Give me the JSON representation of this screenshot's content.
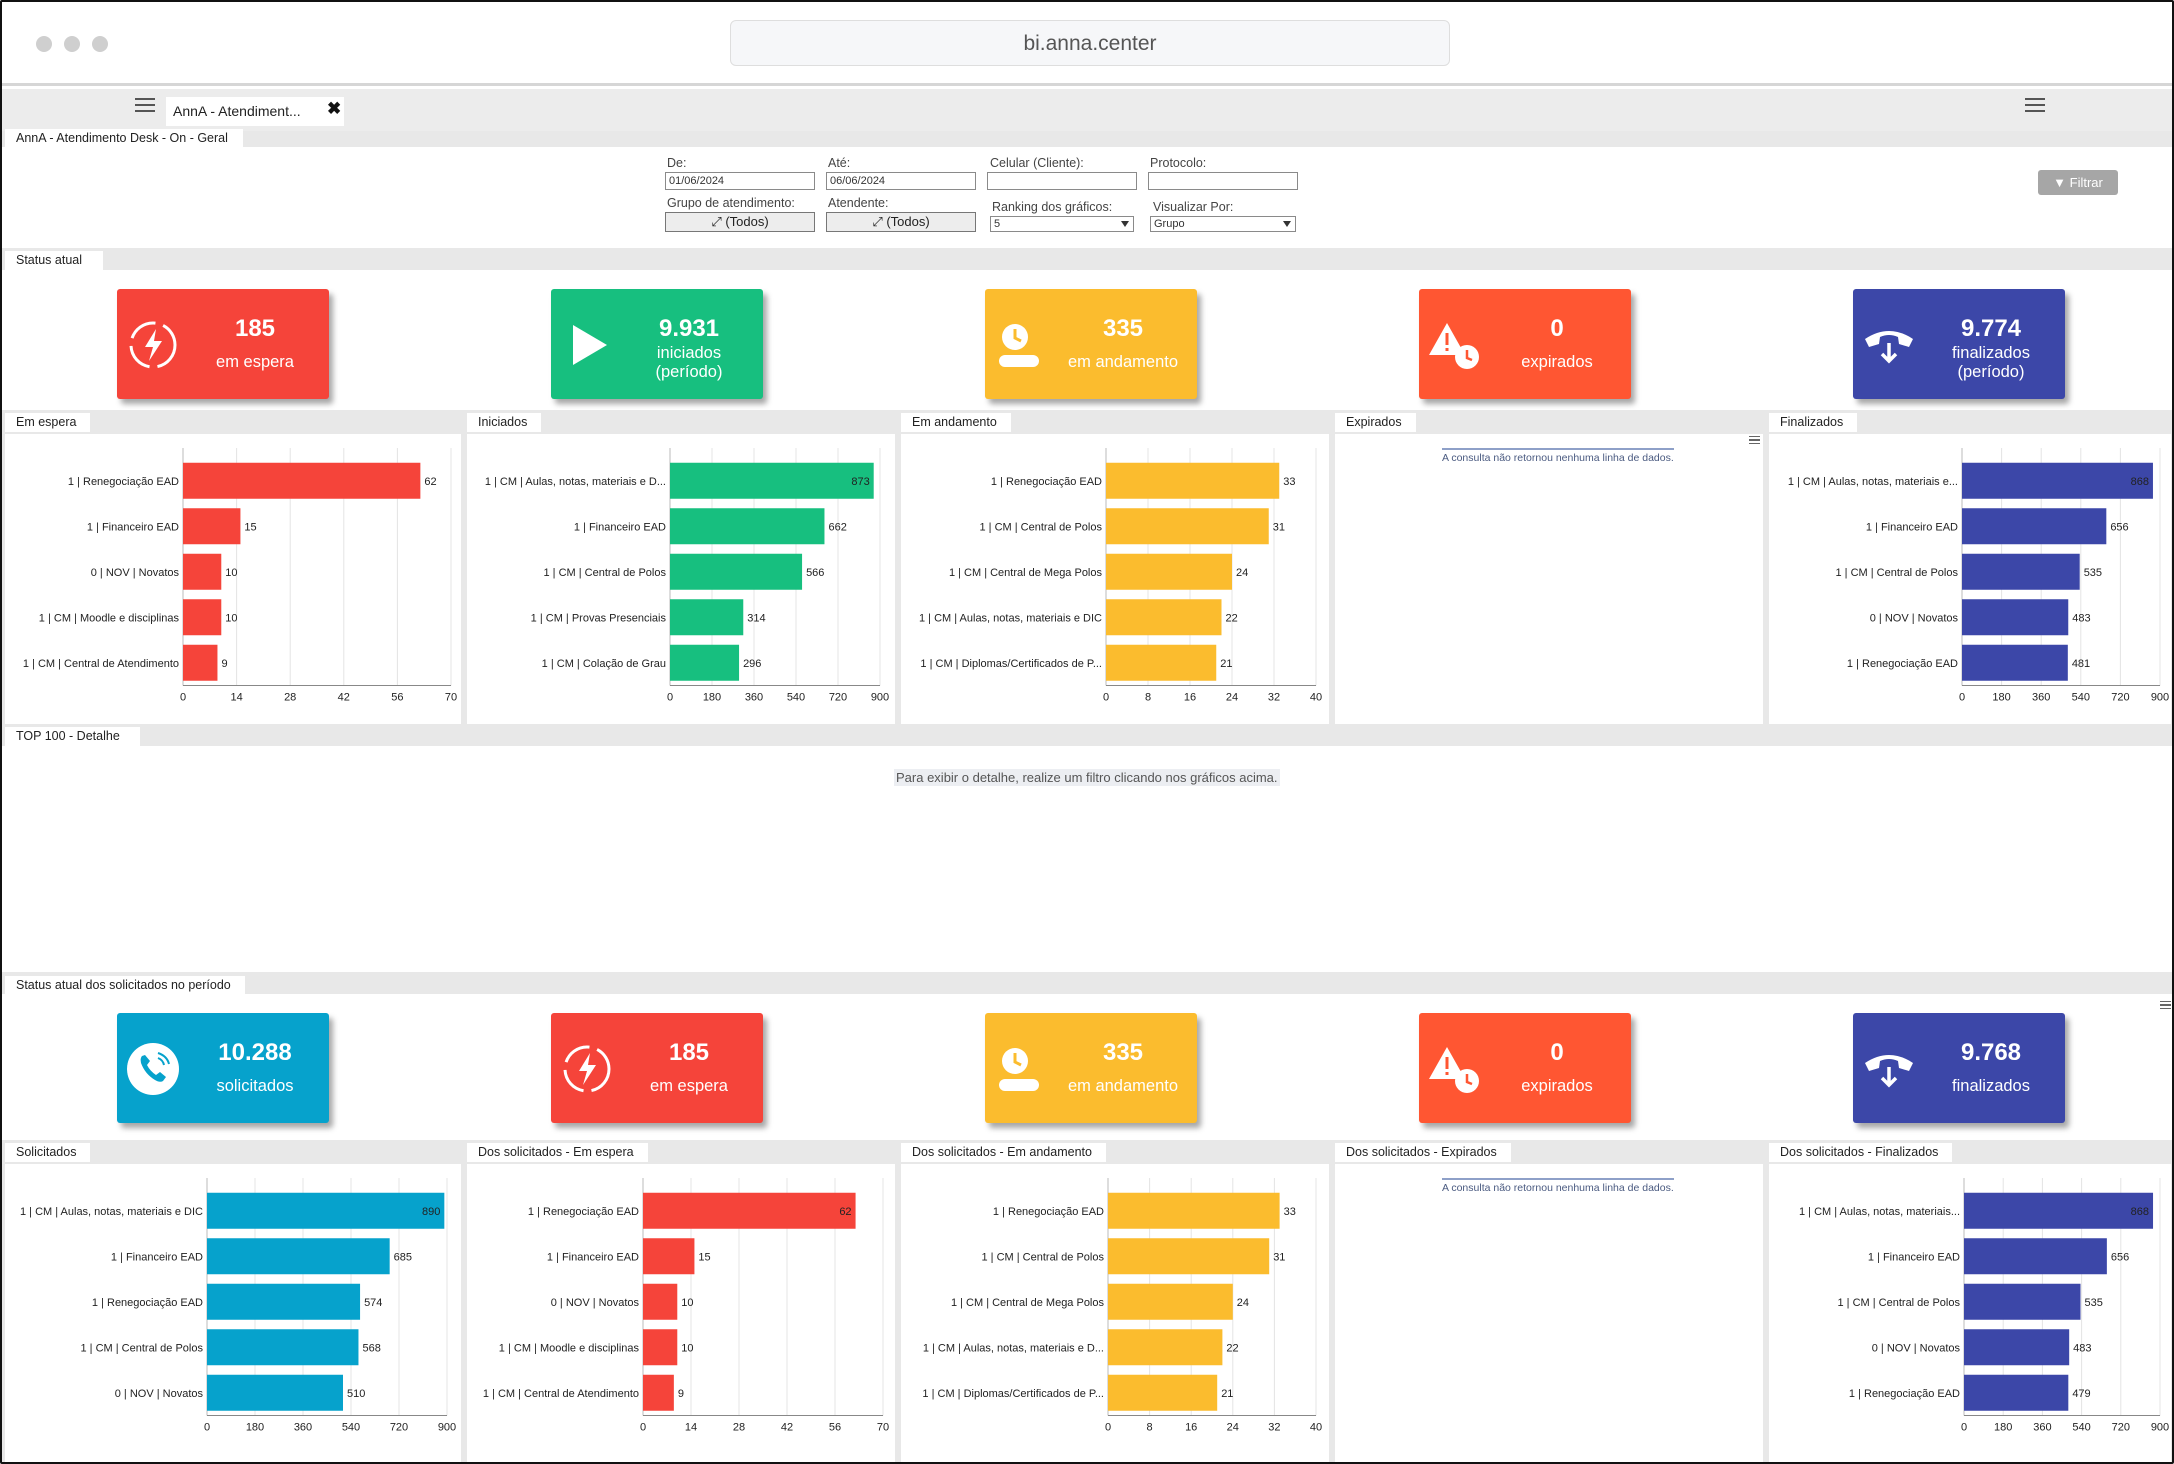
{
  "browser": {
    "url": "bi.anna.center"
  },
  "tab": {
    "title": "AnnA - Atendiment...",
    "close": "✖"
  },
  "dashboard": {
    "title": "AnnA - Atendimento Desk - On - Geral"
  },
  "filters": {
    "from_label": "De:",
    "from_value": "01/06/2024",
    "to_label": "Até:",
    "to_value": "06/06/2024",
    "phone_label": "Celular (Cliente):",
    "phone_value": "",
    "protocol_label": "Protocolo:",
    "protocol_value": "",
    "group_label": "Grupo de atendimento:",
    "group_value": "(Todos)",
    "agent_label": "Atendente:",
    "agent_value": "(Todos)",
    "ranking_label": "Ranking dos gráficos:",
    "ranking_value": "5",
    "view_label": "Visualizar Por:",
    "view_value": "Grupo",
    "filter_button": "Filtrar"
  },
  "status_section": {
    "title": "Status atual"
  },
  "status_kpis": [
    {
      "value": "185",
      "label": "em espera",
      "color": "#f5443a",
      "icon": "waiting-icon"
    },
    {
      "value": "9.931",
      "label": "iniciados (período)",
      "color": "#17bf7f",
      "icon": "play-icon"
    },
    {
      "value": "335",
      "label": "em andamento",
      "color": "#fbbc2e",
      "icon": "clock-icon"
    },
    {
      "value": "0",
      "label": "expirados",
      "color": "#ff5632",
      "icon": "alert-clock-icon"
    },
    {
      "value": "9.774",
      "label": "finalizados (período)",
      "color": "#3c47a8",
      "icon": "hangup-icon"
    }
  ],
  "detail_section": {
    "title": "TOP 100 - Detalhe",
    "hint": "Para exibir o detalhe, realize um filtro clicando nos gráficos acima."
  },
  "period_section": {
    "title": "Status atual dos solicitados no período"
  },
  "period_kpis": [
    {
      "value": "10.288",
      "label": "solicitados",
      "color": "#06a2cc",
      "icon": "phone-icon"
    },
    {
      "value": "185",
      "label": "em espera",
      "color": "#f5443a",
      "icon": "waiting-icon"
    },
    {
      "value": "335",
      "label": "em andamento",
      "color": "#fbbc2e",
      "icon": "clock-icon"
    },
    {
      "value": "0",
      "label": "expirados",
      "color": "#ff5632",
      "icon": "alert-clock-icon"
    },
    {
      "value": "9.768",
      "label": "finalizados",
      "color": "#3c47a8",
      "icon": "hangup-icon"
    }
  ],
  "no_data_message": "A consulta não retornou nenhuma linha de dados.",
  "chart_data": [
    {
      "type": "bar",
      "orientation": "horizontal",
      "title": "Em espera",
      "color": "#f5443a",
      "categories": [
        "1 | Renegociação EAD",
        "1 | Financeiro EAD",
        "0 | NOV | Novatos",
        "1 | CM | Moodle e disciplinas",
        "1 | CM | Central de Atendimento"
      ],
      "values": [
        62,
        15,
        10,
        10,
        9
      ],
      "xticks": [
        "0",
        "14",
        "28",
        "42",
        "56",
        "70"
      ],
      "xlim": [
        0,
        70
      ],
      "grid": true
    },
    {
      "type": "bar",
      "orientation": "horizontal",
      "title": "Iniciados",
      "color": "#17bf7f",
      "categories": [
        "1 | CM | Aulas, notas, materiais e D...",
        "1 | Financeiro EAD",
        "1 | CM | Central de Polos",
        "1 | CM | Provas Presenciais",
        "1 | CM | Colação de Grau"
      ],
      "values": [
        873,
        662,
        566,
        314,
        296
      ],
      "xticks": [
        "0",
        "180",
        "360",
        "540",
        "720",
        "900"
      ],
      "xlim": [
        0,
        900
      ],
      "grid": true
    },
    {
      "type": "bar",
      "orientation": "horizontal",
      "title": "Em andamento",
      "color": "#fbbc2e",
      "categories": [
        "1 | Renegociação EAD",
        "1 | CM | Central de Polos",
        "1 | CM | Central de Mega Polos",
        "1 | CM | Aulas, notas, materiais e DIC",
        "1 | CM | Diplomas/Certificados de P..."
      ],
      "values": [
        33,
        31,
        24,
        22,
        21
      ],
      "xticks": [
        "0",
        "8",
        "16",
        "24",
        "32",
        "40"
      ],
      "xlim": [
        0,
        40
      ],
      "grid": true
    },
    {
      "type": "bar",
      "orientation": "horizontal",
      "title": "Expirados",
      "categories": [],
      "values": []
    },
    {
      "type": "bar",
      "orientation": "horizontal",
      "title": "Finalizados",
      "color": "#3c47a8",
      "categories": [
        "1 | CM | Aulas, notas, materiais e...",
        "1 | Financeiro EAD",
        "1 | CM | Central de Polos",
        "0 | NOV | Novatos",
        "1 | Renegociação EAD"
      ],
      "values": [
        868,
        656,
        535,
        483,
        481
      ],
      "xticks": [
        "0",
        "180",
        "360",
        "540",
        "720",
        "900"
      ],
      "xlim": [
        0,
        900
      ],
      "grid": true
    },
    {
      "type": "bar",
      "orientation": "horizontal",
      "title": "Solicitados",
      "color": "#06a2cc",
      "categories": [
        "1 | CM | Aulas, notas, materiais e DIC",
        "1 | Financeiro EAD",
        "1 | Renegociação EAD",
        "1 | CM | Central de Polos",
        "0 | NOV | Novatos"
      ],
      "values": [
        890,
        685,
        574,
        568,
        510
      ],
      "xticks": [
        "0",
        "180",
        "360",
        "540",
        "720",
        "900"
      ],
      "xlim": [
        0,
        900
      ],
      "grid": true
    },
    {
      "type": "bar",
      "orientation": "horizontal",
      "title": "Dos solicitados - Em espera",
      "color": "#f5443a",
      "categories": [
        "1 | Renegociação EAD",
        "1 | Financeiro EAD",
        "0 | NOV | Novatos",
        "1 | CM | Moodle e disciplinas",
        "1 | CM | Central de Atendimento"
      ],
      "values": [
        62,
        15,
        10,
        10,
        9
      ],
      "xticks": [
        "0",
        "14",
        "28",
        "42",
        "56",
        "70"
      ],
      "xlim": [
        0,
        70
      ],
      "grid": true
    },
    {
      "type": "bar",
      "orientation": "horizontal",
      "title": "Dos solicitados - Em andamento",
      "color": "#fbbc2e",
      "categories": [
        "1 | Renegociação EAD",
        "1 | CM | Central de Polos",
        "1 | CM | Central de Mega Polos",
        "1 | CM | Aulas, notas, materiais e D...",
        "1 | CM | Diplomas/Certificados de P..."
      ],
      "values": [
        33,
        31,
        24,
        22,
        21
      ],
      "xticks": [
        "0",
        "8",
        "16",
        "24",
        "32",
        "40"
      ],
      "xlim": [
        0,
        40
      ],
      "grid": true
    },
    {
      "type": "bar",
      "orientation": "horizontal",
      "title": "Dos solicitados - Expirados",
      "categories": [],
      "values": []
    },
    {
      "type": "bar",
      "orientation": "horizontal",
      "title": "Dos solicitados - Finalizados",
      "color": "#3c47a8",
      "categories": [
        "1 | CM | Aulas, notas, materiais...",
        "1 | Financeiro EAD",
        "1 | CM | Central de Polos",
        "0 | NOV | Novatos",
        "1 | Renegociação EAD"
      ],
      "values": [
        868,
        656,
        535,
        483,
        479
      ],
      "xticks": [
        "0",
        "180",
        "360",
        "540",
        "720",
        "900"
      ],
      "xlim": [
        0,
        900
      ],
      "grid": true
    }
  ]
}
